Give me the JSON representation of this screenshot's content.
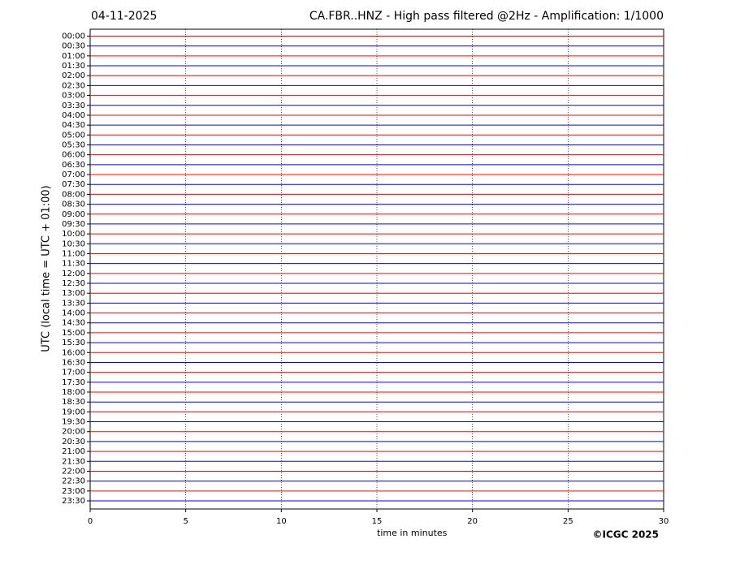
{
  "chart_data": {
    "type": "helicorder",
    "date": "04-11-2025",
    "title": "CA.FBR..HNZ - High pass filtered @2Hz - Amplification: 1/1000",
    "x_label": "time in minutes",
    "y_label": "UTC (local time = UTC + 01:00)",
    "credit": "©ICGC 2025",
    "xlim": [
      0,
      30
    ],
    "xticks": [
      0,
      5,
      10,
      15,
      20,
      25,
      30
    ],
    "grid": true,
    "colors": [
      "#ff0000",
      "#0000ff"
    ],
    "categories": [
      "00:00",
      "00:30",
      "01:00",
      "01:30",
      "02:00",
      "02:30",
      "03:00",
      "03:30",
      "04:00",
      "04:30",
      "05:00",
      "05:30",
      "06:00",
      "06:30",
      "07:00",
      "07:30",
      "08:00",
      "08:30",
      "09:00",
      "09:30",
      "10:00",
      "10:30",
      "11:00",
      "11:30",
      "12:00",
      "12:30",
      "13:00",
      "13:30",
      "14:00",
      "14:30",
      "15:00",
      "15:30",
      "16:00",
      "16:30",
      "17:00",
      "17:30",
      "18:00",
      "18:30",
      "19:00",
      "19:30",
      "20:00",
      "20:30",
      "21:00",
      "21:30",
      "22:00",
      "22:30",
      "23:00",
      "23:30"
    ]
  }
}
